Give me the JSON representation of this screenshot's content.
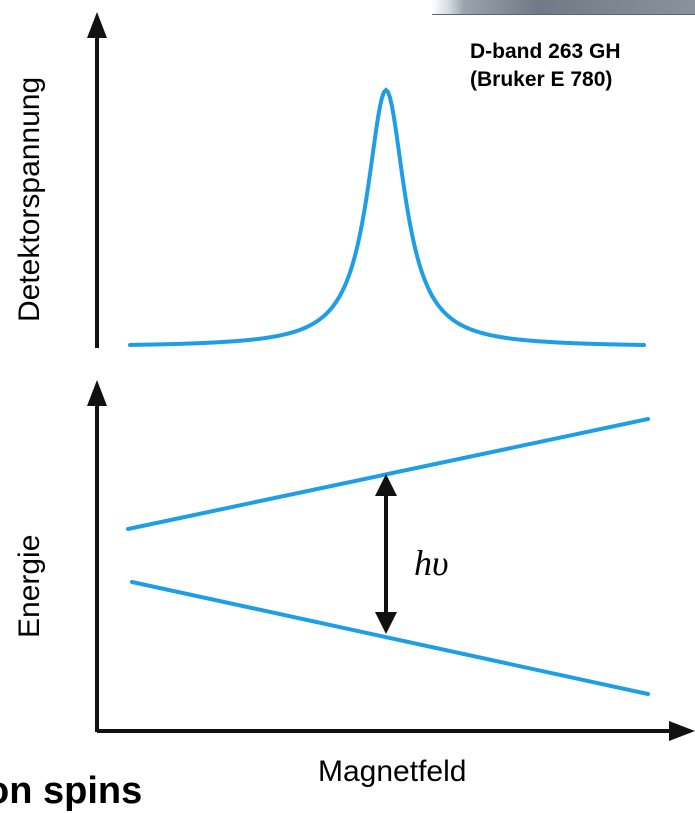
{
  "photo_caption": {
    "line1": "D-band 263 GH",
    "line2": "(Bruker E 780)"
  },
  "top_panel": {
    "ylabel": "Detektorspannung",
    "curve_shape": "lorentzian-peak"
  },
  "bottom_panel": {
    "ylabel": "Energie",
    "transition_label": "hυ",
    "lines": [
      "upper-energy-level",
      "lower-energy-level"
    ]
  },
  "xlabel": "Magnetfeld",
  "cutoff_text": "on spins",
  "colors": {
    "curve": "#1e9ee6",
    "axis": "#111111",
    "text": "#000000"
  }
}
